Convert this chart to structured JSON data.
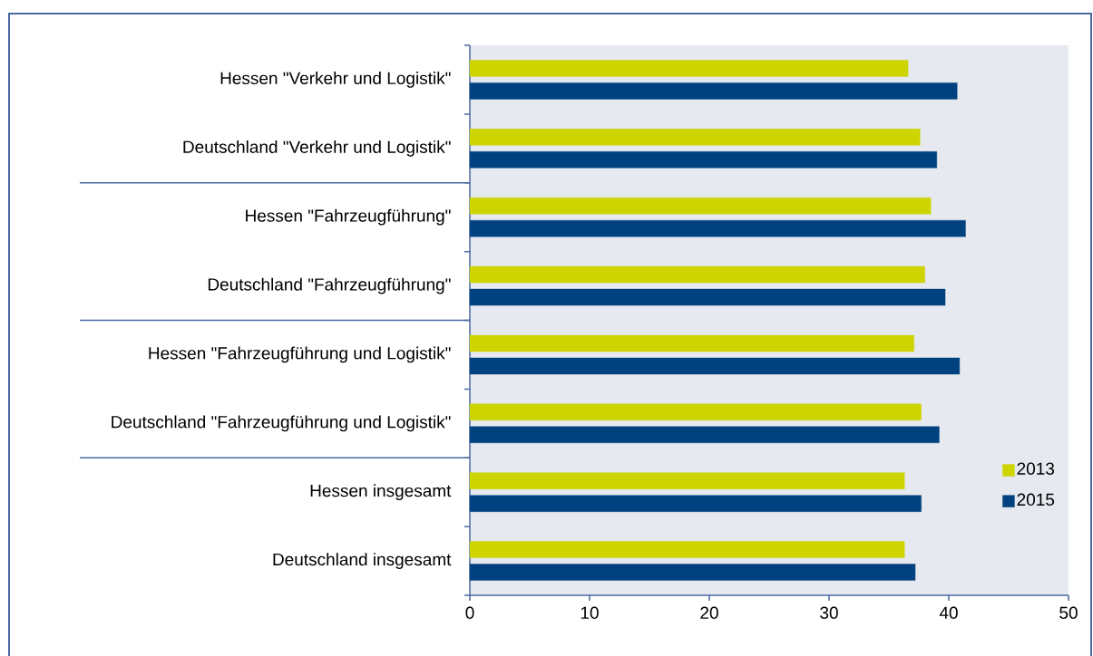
{
  "chart_data": {
    "type": "bar",
    "orientation": "horizontal",
    "categories": [
      "Hessen \"Verkehr und Logistik\"",
      "Deutschland \"Verkehr und Logistik\"",
      "Hessen \"Fahrzeugführung\"",
      "Deutschland \"Fahrzeugführung\"",
      "Hessen \"Fahrzeugführung und Logistik\"",
      "Deutschland \"Fahrzeugführung und Logistik\"",
      "Hessen insgesamt",
      "Deutschland insgesamt"
    ],
    "series": [
      {
        "name": "2013",
        "color": "#cdd400",
        "values": [
          36.6,
          37.6,
          38.5,
          38.0,
          37.1,
          37.7,
          36.3,
          36.3
        ]
      },
      {
        "name": "2015",
        "color": "#00427f",
        "values": [
          40.7,
          39.0,
          41.4,
          39.7,
          40.9,
          39.2,
          37.7,
          37.2
        ]
      }
    ],
    "xlim": [
      0,
      50
    ],
    "xticks": [
      0,
      10,
      20,
      30,
      40,
      50
    ],
    "grid": false,
    "legend": "right"
  }
}
